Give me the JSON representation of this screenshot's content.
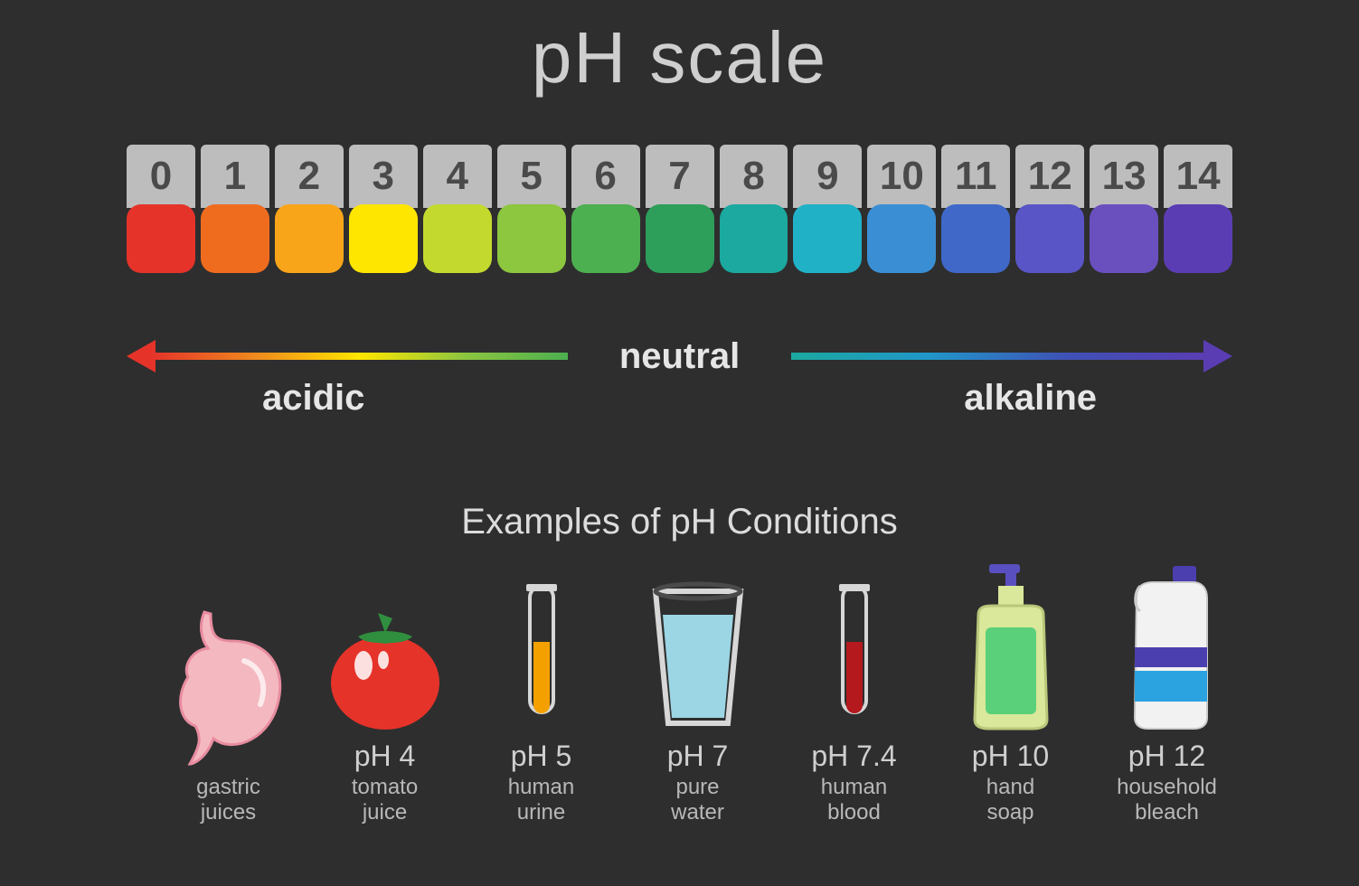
{
  "title": "pH scale",
  "background_color": "#2e2e2e",
  "scale": {
    "label_bg": "#bdbdbd",
    "label_fg": "#4a4a4a",
    "label_fontsize": 44,
    "chip_height": 76,
    "chip_radius": 16,
    "items": [
      {
        "n": "0",
        "color": "#e5332a"
      },
      {
        "n": "1",
        "color": "#ef6c1f"
      },
      {
        "n": "2",
        "color": "#f9a51a"
      },
      {
        "n": "3",
        "color": "#ffe600"
      },
      {
        "n": "4",
        "color": "#c4d92e"
      },
      {
        "n": "5",
        "color": "#8dc63f"
      },
      {
        "n": "6",
        "color": "#4caf50"
      },
      {
        "n": "7",
        "color": "#2e9e5b"
      },
      {
        "n": "8",
        "color": "#1ba9a0"
      },
      {
        "n": "9",
        "color": "#21b1c7"
      },
      {
        "n": "10",
        "color": "#3a8fd4"
      },
      {
        "n": "11",
        "color": "#3f68c9"
      },
      {
        "n": "12",
        "color": "#5a55c6"
      },
      {
        "n": "13",
        "color": "#6a4fbf"
      },
      {
        "n": "14",
        "color": "#5b3db3"
      }
    ]
  },
  "axis": {
    "neutral_label": "neutral",
    "acidic_label": "acidic",
    "alkaline_label": "alkaline",
    "label_fontsize": 40,
    "gradient_left": [
      "#e5332a",
      "#f08a1d",
      "#ffe600",
      "#8dc63f",
      "#4caf50"
    ],
    "gradient_right": [
      "#1ba9a0",
      "#2196c9",
      "#3f51b5",
      "#5b3db3"
    ],
    "arrow_left_color": "#e5332a",
    "arrow_right_color": "#5b3db3",
    "line_thickness": 8
  },
  "examples_heading": "Examples of pH Conditions",
  "examples": [
    {
      "icon": "stomach",
      "ph": "",
      "name": "gastric\njuices",
      "colors": {
        "fill": "#f4b8c0",
        "stroke": "#e88ca0"
      }
    },
    {
      "icon": "tomato",
      "ph": "pH 4",
      "name": "tomato\njuice",
      "colors": {
        "fill": "#e5332a",
        "leaf": "#2f8f3f",
        "shine": "#ffffff"
      }
    },
    {
      "icon": "testtube",
      "ph": "pH 5",
      "name": "human\nurine",
      "colors": {
        "fluid": "#f4a100",
        "glass": "#d7d7d7"
      }
    },
    {
      "icon": "glass",
      "ph": "pH 7",
      "name": "pure\nwater",
      "colors": {
        "water": "#9cd5e3",
        "glass": "#d7d7d7",
        "rim": "#4a4a4a"
      }
    },
    {
      "icon": "testtube",
      "ph": "pH 7.4",
      "name": "human\nblood",
      "colors": {
        "fluid": "#b4191d",
        "glass": "#d7d7d7"
      }
    },
    {
      "icon": "soap",
      "ph": "pH 10",
      "name": "hand\nsoap",
      "colors": {
        "body": "#d9e89a",
        "fluid": "#5bd07a",
        "pump": "#5a4fc0"
      }
    },
    {
      "icon": "bleach",
      "ph": "pH 12",
      "name": "household\nbleach",
      "colors": {
        "body": "#f2f2f2",
        "cap": "#4b3fb0",
        "band1": "#4b3fb0",
        "band2": "#2aa3e0"
      }
    }
  ],
  "typography": {
    "title_fontsize": 80,
    "examples_heading_fontsize": 40,
    "ph_fontsize": 32,
    "name_fontsize": 24,
    "title_color": "#cfcfcf",
    "text_color": "#d6d6d6"
  }
}
